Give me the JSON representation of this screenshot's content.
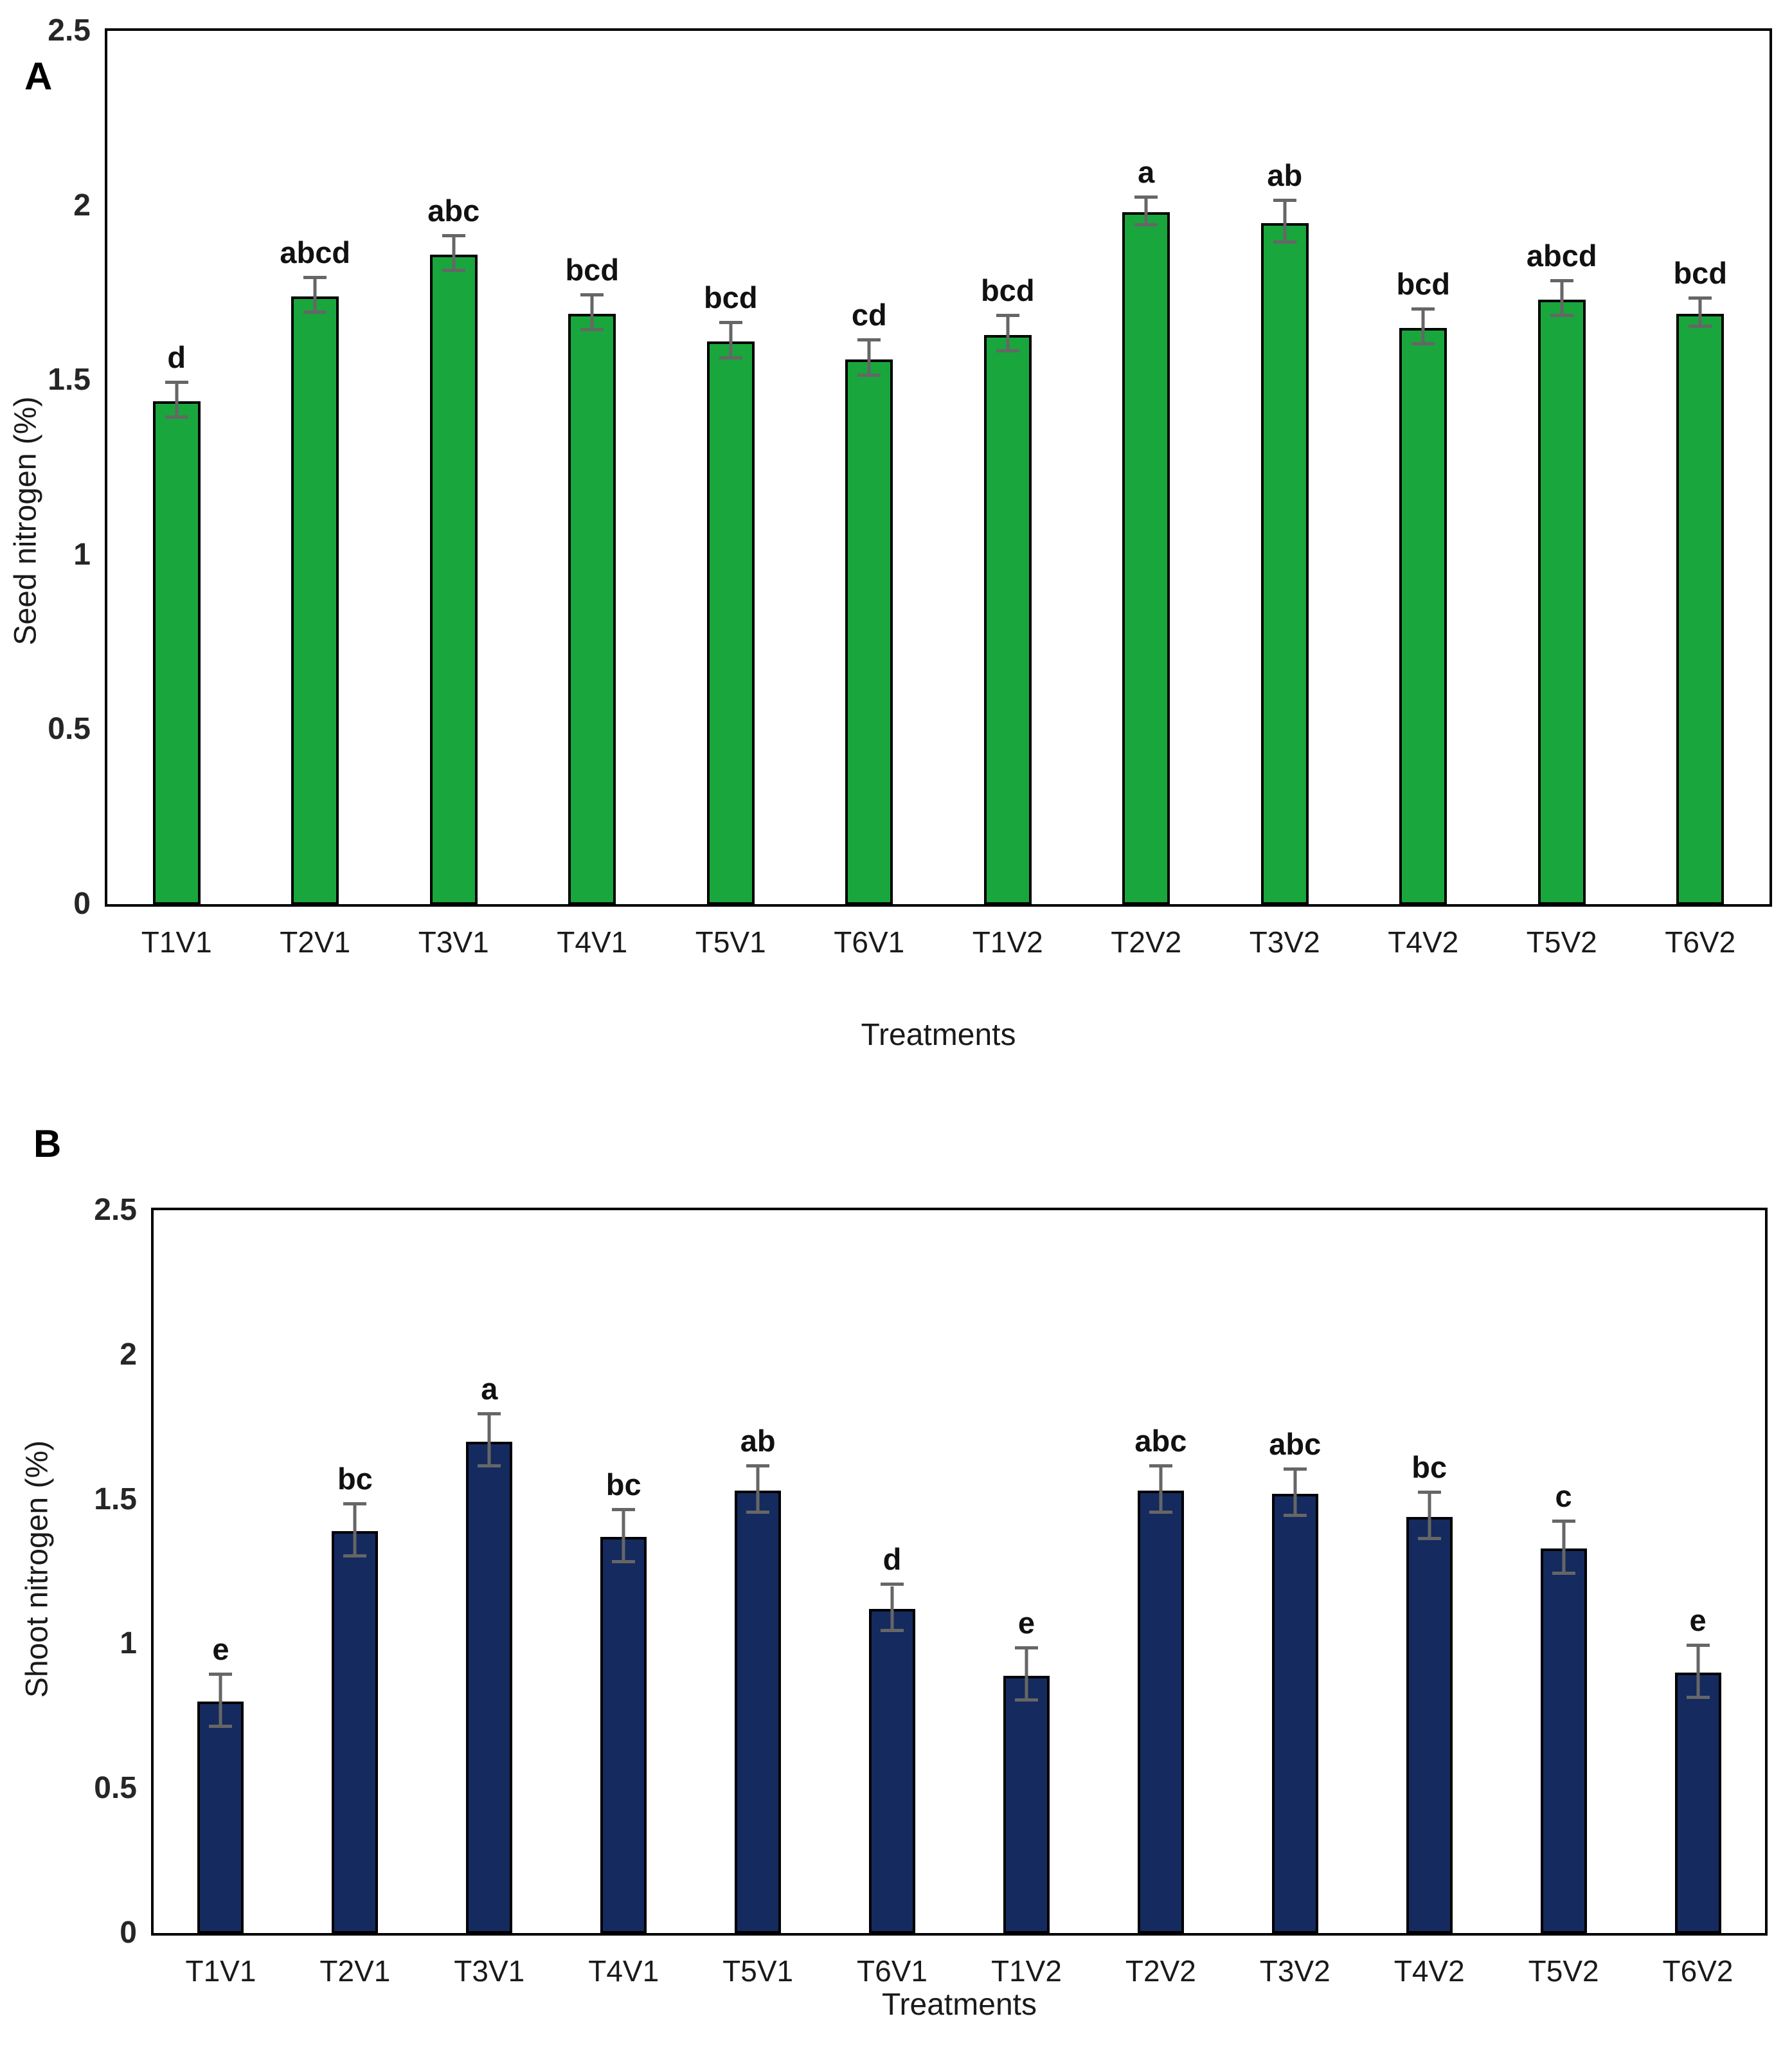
{
  "figure": {
    "background": "#ffffff",
    "panel_count": 2
  },
  "chart_data": [
    {
      "type": "bar",
      "panel_label": "A",
      "title": "",
      "xlabel": "Treatments",
      "ylabel": "Seed nitrogen (%)",
      "ylim": [
        0,
        2.5
      ],
      "yticks": [
        0,
        0.5,
        1,
        1.5,
        2,
        2.5
      ],
      "ytick_labels": [
        "0",
        "0.5",
        "1",
        "1.5",
        "2",
        "2.5"
      ],
      "grid": false,
      "legend": "none",
      "bar_color": "#19a63c",
      "bar_border_color": "#000000",
      "error_color": "#666666",
      "categories": [
        "T1V1",
        "T2V1",
        "T3V1",
        "T4V1",
        "T5V1",
        "T6V1",
        "T1V2",
        "T2V2",
        "T3V2",
        "T4V2",
        "T5V2",
        "T6V2"
      ],
      "values": [
        1.44,
        1.74,
        1.86,
        1.69,
        1.61,
        1.56,
        1.63,
        1.98,
        1.95,
        1.65,
        1.73,
        1.69
      ],
      "errors": [
        0.05,
        0.05,
        0.05,
        0.05,
        0.05,
        0.05,
        0.05,
        0.04,
        0.06,
        0.05,
        0.05,
        0.04
      ],
      "sig_letters": [
        "d",
        "abcd",
        "abc",
        "bcd",
        "bcd",
        "cd",
        "bcd",
        "a",
        "ab",
        "bcd",
        "abcd",
        "bcd"
      ]
    },
    {
      "type": "bar",
      "panel_label": "B",
      "title": "",
      "xlabel": "Treatments",
      "ylabel": "Shoot nitrogen (%)",
      "ylim": [
        0,
        2.5
      ],
      "yticks": [
        0,
        0.5,
        1,
        1.5,
        2,
        2.5
      ],
      "ytick_labels": [
        "0",
        "0.5",
        "1",
        "1.5",
        "2",
        "2.5"
      ],
      "grid": false,
      "legend": "none",
      "bar_color": "#152a5e",
      "bar_border_color": "#000000",
      "error_color": "#666666",
      "categories": [
        "T1V1",
        "T2V1",
        "T3V1",
        "T4V1",
        "T5V1",
        "T6V1",
        "T1V2",
        "T2V2",
        "T3V2",
        "T4V2",
        "T5V2",
        "T6V2"
      ],
      "values": [
        0.8,
        1.39,
        1.7,
        1.37,
        1.53,
        1.12,
        0.89,
        1.53,
        1.52,
        1.44,
        1.33,
        0.9
      ],
      "errors": [
        0.09,
        0.09,
        0.09,
        0.09,
        0.08,
        0.08,
        0.09,
        0.08,
        0.08,
        0.08,
        0.09,
        0.09
      ],
      "sig_letters": [
        "e",
        "bc",
        "a",
        "bc",
        "ab",
        "d",
        "e",
        "abc",
        "abc",
        "bc",
        "c",
        "e"
      ]
    }
  ]
}
